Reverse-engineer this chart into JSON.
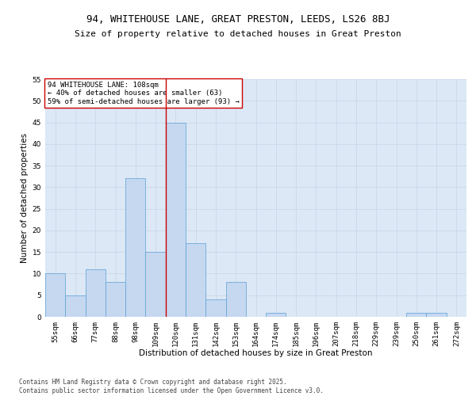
{
  "title1": "94, WHITEHOUSE LANE, GREAT PRESTON, LEEDS, LS26 8BJ",
  "title2": "Size of property relative to detached houses in Great Preston",
  "xlabel": "Distribution of detached houses by size in Great Preston",
  "ylabel": "Number of detached properties",
  "categories": [
    "55sqm",
    "66sqm",
    "77sqm",
    "88sqm",
    "98sqm",
    "109sqm",
    "120sqm",
    "131sqm",
    "142sqm",
    "153sqm",
    "164sqm",
    "174sqm",
    "185sqm",
    "196sqm",
    "207sqm",
    "218sqm",
    "229sqm",
    "239sqm",
    "250sqm",
    "261sqm",
    "272sqm"
  ],
  "values": [
    10,
    5,
    11,
    8,
    32,
    15,
    45,
    17,
    4,
    8,
    0,
    1,
    0,
    0,
    0,
    0,
    0,
    0,
    1,
    1,
    0
  ],
  "bar_color": "#c5d8f0",
  "bar_edge_color": "#5a9fd4",
  "grid_color": "#c8d4e8",
  "background_color": "#dce8f5",
  "vline_x": 5.5,
  "vline_color": "#cc0000",
  "annotation_text": "94 WHITEHOUSE LANE: 108sqm\n← 40% of detached houses are smaller (63)\n59% of semi-detached houses are larger (93) →",
  "annotation_box_color": "#ffffff",
  "annotation_box_edge": "#cc0000",
  "ylim": [
    0,
    55
  ],
  "yticks": [
    0,
    5,
    10,
    15,
    20,
    25,
    30,
    35,
    40,
    45,
    50,
    55
  ],
  "footer": "Contains HM Land Registry data © Crown copyright and database right 2025.\nContains public sector information licensed under the Open Government Licence v3.0.",
  "title_fontsize": 9,
  "subtitle_fontsize": 8,
  "axis_label_fontsize": 7.5,
  "tick_fontsize": 6.5,
  "annotation_fontsize": 6.5,
  "footer_fontsize": 5.5
}
